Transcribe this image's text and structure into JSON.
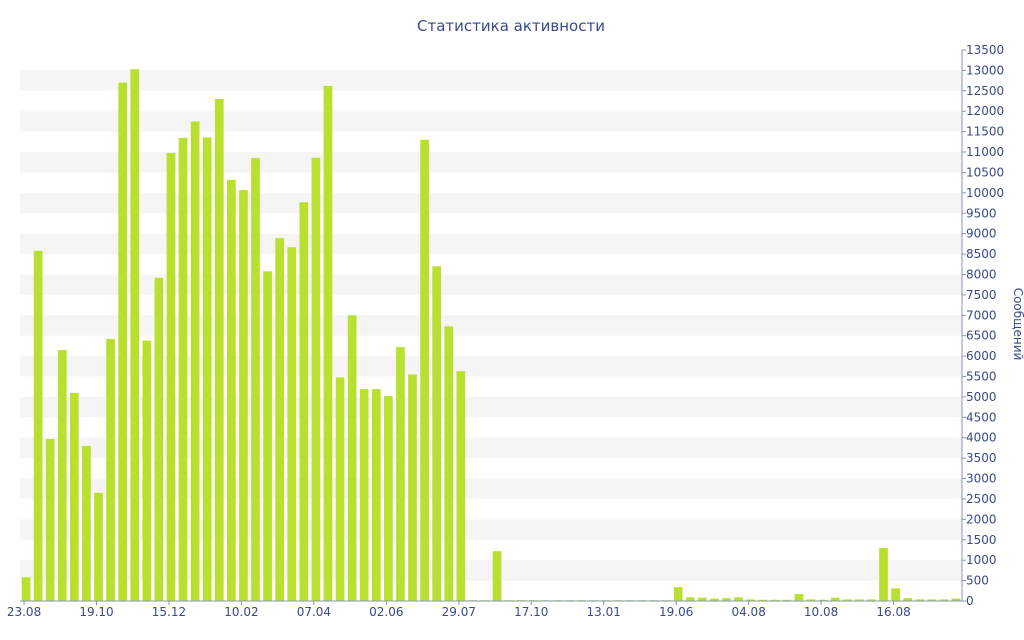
{
  "chart_data": {
    "type": "bar",
    "title": "Статистика активности",
    "ylabel": "Сообщений",
    "xlabel": "",
    "ylim": [
      0,
      13500
    ],
    "ytick_step": 500,
    "grid": "alternating-bands",
    "y_axis_side": "right",
    "bar_color": "#b9e02f",
    "x_tick_labels": [
      {
        "index": 0,
        "label": "23.08"
      },
      {
        "index": 6,
        "label": "19.10"
      },
      {
        "index": 12,
        "label": "15.12"
      },
      {
        "index": 18,
        "label": "10.02"
      },
      {
        "index": 24,
        "label": "07.04"
      },
      {
        "index": 30,
        "label": "02.06"
      },
      {
        "index": 36,
        "label": "29.07"
      },
      {
        "index": 42,
        "label": "17.10"
      },
      {
        "index": 48,
        "label": "13.01"
      },
      {
        "index": 54,
        "label": "19.06"
      },
      {
        "index": 60,
        "label": "04.08"
      },
      {
        "index": 66,
        "label": "10.08"
      },
      {
        "index": 72,
        "label": "16.08"
      }
    ],
    "values": [
      580,
      8580,
      3970,
      6150,
      5100,
      3800,
      2650,
      6420,
      12700,
      13030,
      6380,
      7920,
      10980,
      11350,
      11750,
      11360,
      12300,
      10320,
      10070,
      10850,
      8080,
      8890,
      8670,
      9770,
      10860,
      12620,
      5480,
      7000,
      5190,
      5190,
      5020,
      6220,
      5550,
      11300,
      8200,
      6730,
      5630,
      20,
      20,
      1220,
      20,
      20,
      20,
      20,
      20,
      20,
      20,
      20,
      20,
      20,
      20,
      20,
      20,
      20,
      340,
      90,
      80,
      60,
      70,
      90,
      40,
      30,
      30,
      30,
      170,
      40,
      30,
      80,
      40,
      40,
      40,
      1300,
      310,
      70,
      40,
      40,
      40,
      60
    ]
  }
}
